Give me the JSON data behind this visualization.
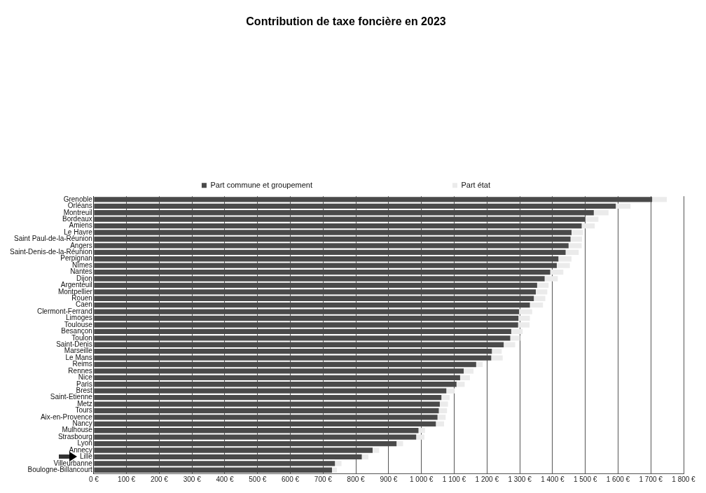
{
  "chart_data": {
    "type": "bar",
    "orientation": "horizontal",
    "stacked": true,
    "title": "Contribution de taxe foncière en 2023",
    "categories": [
      "Grenoble",
      "Orléans",
      "Montreuil",
      "Bordeaux",
      "Amiens",
      "Le Havre",
      "Saint Paul-de-la-Réunion",
      "Angers",
      "Saint-Denis-de-la-Réunion",
      "Perpignan",
      "Nîmes",
      "Nantes",
      "Dijon",
      "Argenteuil",
      "Montpellier",
      "Rouen",
      "Caen",
      "Clermont-Ferrand",
      "Limoges",
      "Toulouse",
      "Besançon",
      "Toulon",
      "Saint-Denis",
      "Marseille",
      "Le Mans",
      "Reims",
      "Rennes",
      "Nice",
      "Paris",
      "Brest",
      "Saint-Etienne",
      "Metz",
      "Tours",
      "Aix-en-Provence",
      "Nancy",
      "Mulhouse",
      "Strasbourg",
      "Lyon",
      "Annecy",
      "Lille",
      "Villeurbanne",
      "Boulogne-Billancourt"
    ],
    "series": [
      {
        "name": "Part commune et groupement",
        "color": "#4a4a4a",
        "values": [
          1704,
          1593,
          1526,
          1500,
          1489,
          1458,
          1455,
          1449,
          1440,
          1418,
          1413,
          1393,
          1376,
          1353,
          1349,
          1343,
          1331,
          1298,
          1296,
          1295,
          1274,
          1271,
          1251,
          1215,
          1213,
          1167,
          1129,
          1118,
          1107,
          1076,
          1061,
          1056,
          1053,
          1049,
          1044,
          991,
          984,
          924,
          851,
          818,
          736,
          727
        ]
      },
      {
        "name": "Part état",
        "color": "#ebebeb",
        "values": [
          45,
          45,
          45,
          40,
          40,
          35,
          35,
          40,
          40,
          40,
          40,
          40,
          40,
          35,
          35,
          35,
          40,
          40,
          35,
          35,
          35,
          30,
          35,
          30,
          35,
          20,
          30,
          30,
          25,
          25,
          25,
          25,
          25,
          25,
          25,
          20,
          25,
          20,
          20,
          20,
          20,
          15
        ]
      }
    ],
    "xlim": [
      0,
      1800
    ],
    "xticks": [
      {
        "value": 0,
        "label": "0 €"
      },
      {
        "value": 100,
        "label": "100 €"
      },
      {
        "value": 200,
        "label": "200 €"
      },
      {
        "value": 300,
        "label": "300 €"
      },
      {
        "value": 400,
        "label": "400 €"
      },
      {
        "value": 500,
        "label": "500 €"
      },
      {
        "value": 600,
        "label": "600 €"
      },
      {
        "value": 700,
        "label": "700 €"
      },
      {
        "value": 800,
        "label": "800 €"
      },
      {
        "value": 900,
        "label": "900 €"
      },
      {
        "value": 1000,
        "label": "1 000 €"
      },
      {
        "value": 1100,
        "label": "1 100 €"
      },
      {
        "value": 1200,
        "label": "1 200 €"
      },
      {
        "value": 1300,
        "label": "1 300 €"
      },
      {
        "value": 1400,
        "label": "1 400 €"
      },
      {
        "value": 1500,
        "label": "1 500 €"
      },
      {
        "value": 1600,
        "label": "1 600 €"
      },
      {
        "value": 1700,
        "label": "1 700 €"
      },
      {
        "value": 1800,
        "label": "1 800 €"
      }
    ],
    "grid": "x",
    "legend": "top"
  }
}
